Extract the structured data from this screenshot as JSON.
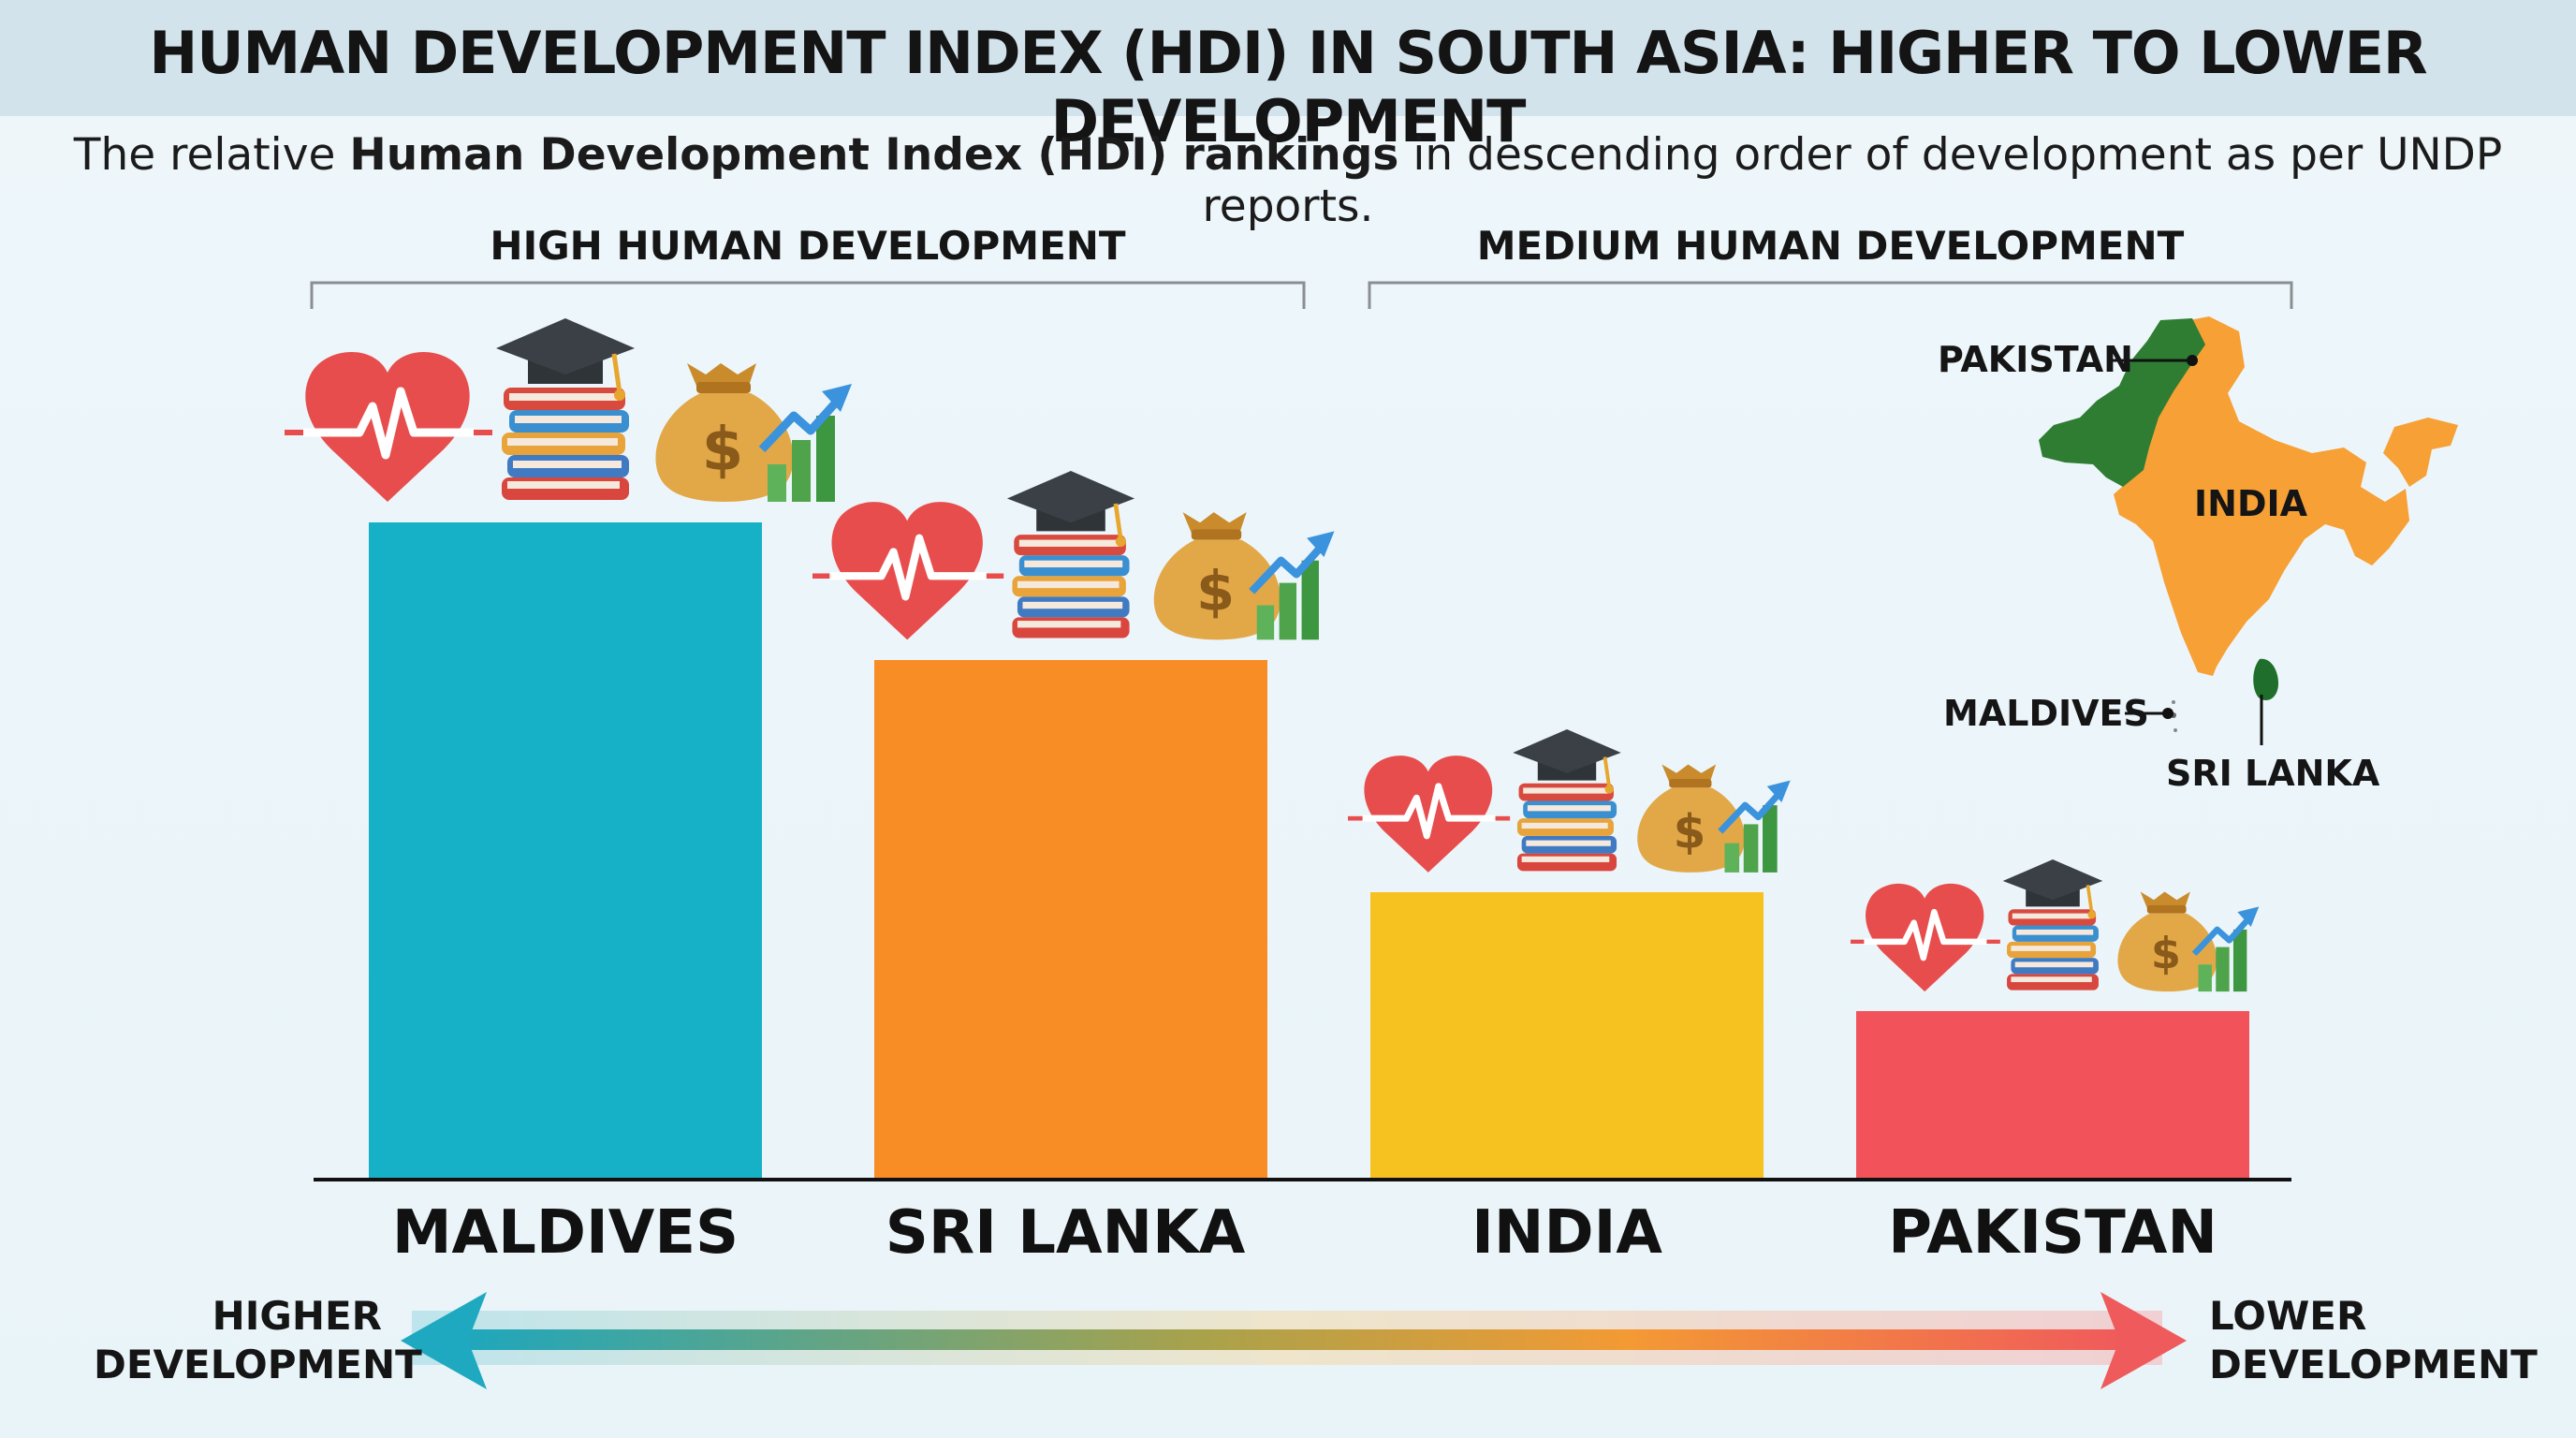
{
  "header": {
    "title": "HUMAN DEVELOPMENT INDEX (HDI) IN SOUTH ASIA: HIGHER TO LOWER DEVELOPMENT",
    "subtitle_pre": "The relative ",
    "subtitle_bold": "Human Development Index (HDI) rankings",
    "subtitle_post": " in descending order of development as per UNDP reports."
  },
  "groups": {
    "high": "HIGH HUMAN DEVELOPMENT",
    "medium": "MEDIUM HUMAN DEVELOPMENT"
  },
  "chart_data": {
    "type": "bar",
    "title": "HUMAN DEVELOPMENT INDEX (HDI) IN SOUTH ASIA: HIGHER TO LOWER DEVELOPMENT",
    "categories": [
      "MALDIVES",
      "SRI LANKA",
      "INDIA",
      "PAKISTAN"
    ],
    "values": [
      4,
      3,
      2,
      1
    ],
    "value_meaning": "relative development rank height, 4 = highest",
    "colors": [
      "#16b1c6",
      "#f98d25",
      "#f6c21f",
      "#f2535b"
    ],
    "xlabel": "",
    "ylabel": "",
    "ylim": [
      0,
      4
    ],
    "grid": false,
    "legend": "none"
  },
  "scale": {
    "left": "HIGHER",
    "left2": "DEVELOPMENT",
    "right": "LOWER",
    "right2": "DEVELOPMENT"
  },
  "map": {
    "pakistan": "PAKISTAN",
    "india": "INDIA",
    "maldives": "MALDIVES",
    "srilanka": "SRI LANKA",
    "colors": {
      "pakistan": "#2e7d32",
      "india": "#f7a035",
      "srilanka": "#1f6e2b"
    }
  },
  "icons": [
    "heart-pulse-icon",
    "books-graduation-cap-icon",
    "money-bag-growth-icon"
  ]
}
